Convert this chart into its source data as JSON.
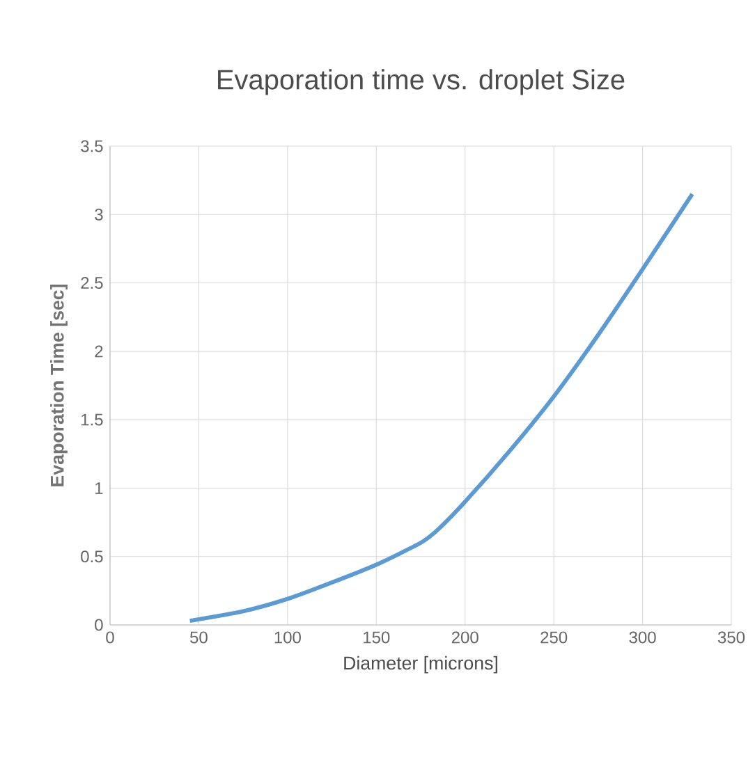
{
  "chart_data": {
    "type": "line",
    "title": "Evaporation time vs. droplet Size",
    "xlabel": "Diameter [microns]",
    "ylabel": "Evaporation Time [sec]",
    "x": [
      45,
      75,
      100,
      125,
      150,
      175,
      185,
      200,
      225,
      250,
      275,
      300,
      328
    ],
    "series": [
      {
        "color": "#5b9bd5",
        "values": [
          0.03,
          0.1,
          0.19,
          0.31,
          0.44,
          0.6,
          0.7,
          0.9,
          1.27,
          1.67,
          2.12,
          2.6,
          3.15
        ]
      }
    ],
    "xlim": [
      0,
      350
    ],
    "xticks": [
      0,
      50,
      100,
      150,
      200,
      250,
      300,
      350
    ],
    "ylim": [
      0,
      3.5
    ],
    "yticks": [
      0,
      0.5,
      1,
      1.5,
      2,
      2.5,
      3,
      3.5
    ],
    "grid": true,
    "marker": "none",
    "line_style": "solid"
  }
}
